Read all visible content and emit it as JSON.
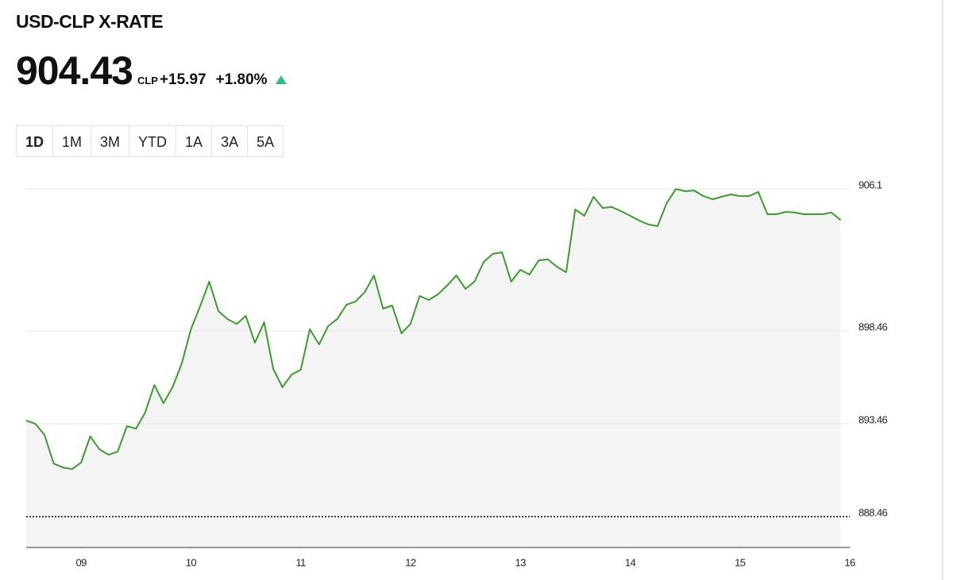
{
  "header": {
    "title": "USD-CLP X-RATE",
    "price": "904.43",
    "unit": "CLP",
    "change": "+15.97",
    "change_pct": "+1.80%"
  },
  "tabs": [
    "1D",
    "1M",
    "3M",
    "YTD",
    "1A",
    "3A",
    "5A"
  ],
  "chart_data": {
    "type": "line",
    "x": [
      8.5,
      8.583,
      8.667,
      8.75,
      8.833,
      8.917,
      9,
      9.083,
      9.167,
      9.25,
      9.333,
      9.417,
      9.5,
      9.583,
      9.667,
      9.75,
      9.833,
      9.917,
      10,
      10.083,
      10.167,
      10.25,
      10.333,
      10.417,
      10.5,
      10.583,
      10.667,
      10.75,
      10.833,
      10.917,
      11,
      11.083,
      11.167,
      11.25,
      11.333,
      11.417,
      11.5,
      11.583,
      11.667,
      11.75,
      11.833,
      11.917,
      12,
      12.083,
      12.167,
      12.25,
      12.333,
      12.417,
      12.5,
      12.583,
      12.667,
      12.75,
      12.833,
      12.917,
      13,
      13.083,
      13.167,
      13.25,
      13.333,
      13.417,
      13.5,
      13.583,
      13.667,
      13.75,
      13.833,
      13.917,
      14,
      14.083,
      14.167,
      14.25,
      14.333,
      14.417,
      14.5,
      14.583,
      14.667,
      14.75,
      14.833,
      14.917,
      15,
      15.083,
      15.167,
      15.25,
      15.333,
      15.417,
      15.5,
      15.583,
      15.667,
      15.75,
      15.833,
      15.917
    ],
    "series": [
      {
        "color": "#3a9e2a",
        "values": [
          893.63,
          893.46,
          892.86,
          891.32,
          891.11,
          891.02,
          891.37,
          892.78,
          892.09,
          891.79,
          891.96,
          893.33,
          893.2,
          894.06,
          895.55,
          894.57,
          895.43,
          896.71,
          898.55,
          899.78,
          901.11,
          899.53,
          899.1,
          898.84,
          899.27,
          897.82,
          898.93,
          896.41,
          895.43,
          896.11,
          896.37,
          898.55,
          897.73,
          898.72,
          899.1,
          899.87,
          900.04,
          900.55,
          901.45,
          899.66,
          899.83,
          898.33,
          898.84,
          900.34,
          900.13,
          900.43,
          900.9,
          901.45,
          900.72,
          901.11,
          902.18,
          902.61,
          902.69,
          901.11,
          901.75,
          901.49,
          902.26,
          902.31,
          901.92,
          901.62,
          905.0,
          904.66,
          905.68,
          905.08,
          905.13,
          904.91,
          904.66,
          904.4,
          904.19,
          904.1,
          905.34,
          906.1,
          905.98,
          906.02,
          905.72,
          905.55,
          905.68,
          905.81,
          905.72,
          905.72,
          905.94,
          904.74,
          904.74,
          904.87,
          904.83,
          904.74,
          904.74,
          904.74,
          904.83,
          904.43
        ]
      }
    ],
    "xlim": [
      8.5,
      16
    ],
    "xticks": [
      {
        "value": 9,
        "label": "09"
      },
      10,
      11,
      12,
      13,
      14,
      15,
      16
    ],
    "ylim": [
      886.8,
      906.6
    ],
    "yticks": [
      888.46,
      893.46,
      898.46,
      906.1
    ],
    "grid": true
  }
}
